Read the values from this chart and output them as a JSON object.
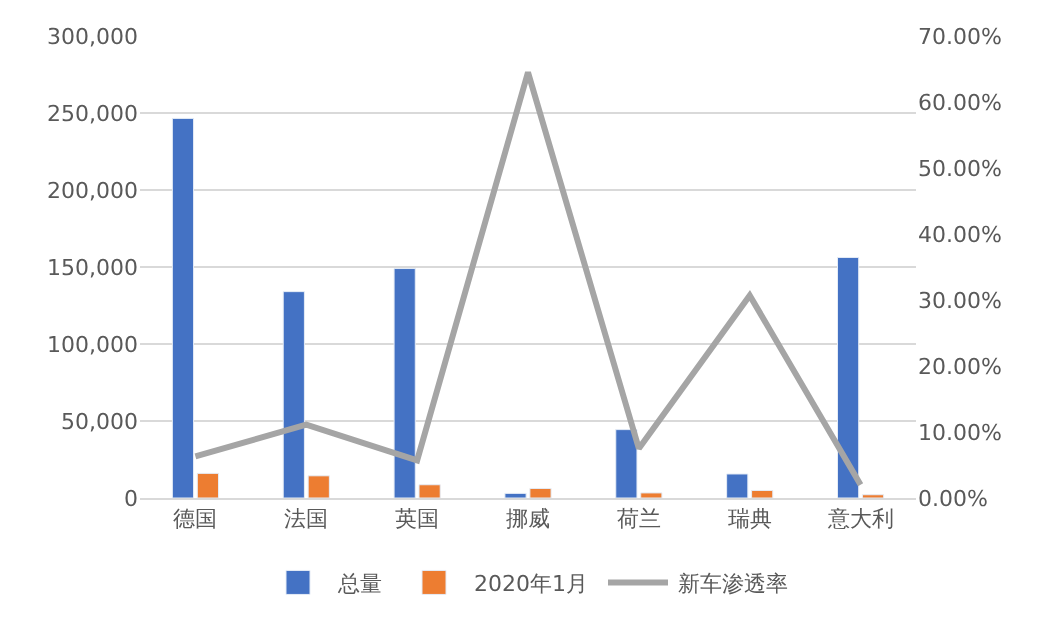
{
  "chart_data": {
    "type": "bar",
    "categories": [
      "德国",
      "法国",
      "英国",
      "挪威",
      "荷兰",
      "瑞典",
      "意大利"
    ],
    "series": [
      {
        "name": "总量",
        "color": "#4472c4",
        "values": [
          246500,
          134000,
          149000,
          3000,
          44400,
          15600,
          156200
        ]
      },
      {
        "name": "2020年1月",
        "color": "#ed7d31",
        "values": [
          16000,
          14400,
          8600,
          6200,
          3300,
          4900,
          2100
        ]
      },
      {
        "name": "新车渗透率",
        "type": "line",
        "axis": "y2",
        "color": "#a5a5a5",
        "marker": "none",
        "values": [
          6.3,
          11.1,
          5.7,
          64.5,
          7.5,
          30.7,
          2.0
        ]
      }
    ],
    "ylim": [
      0,
      300000
    ],
    "yticks": [
      {
        "value": 0,
        "label": "0"
      },
      {
        "value": 50000,
        "label": "50,000"
      },
      {
        "value": 100000,
        "label": "100,000"
      },
      {
        "value": 150000,
        "label": "150,000"
      },
      {
        "value": 200000,
        "label": "200,000"
      },
      {
        "value": 250000,
        "label": "250,000"
      },
      {
        "value": 300000,
        "label": "300,000"
      }
    ],
    "y2lim": [
      0,
      70
    ],
    "y2ticks": [
      {
        "value": 0,
        "label": "0.00%"
      },
      {
        "value": 10,
        "label": "10.00%"
      },
      {
        "value": 20,
        "label": "20.00%"
      },
      {
        "value": 30,
        "label": "30.00%"
      },
      {
        "value": 40,
        "label": "40.00%"
      },
      {
        "value": 50,
        "label": "50.00%"
      },
      {
        "value": 60,
        "label": "60.00%"
      },
      {
        "value": 70,
        "label": "70.00%"
      }
    ],
    "grid": "y",
    "legend": "bottom"
  }
}
